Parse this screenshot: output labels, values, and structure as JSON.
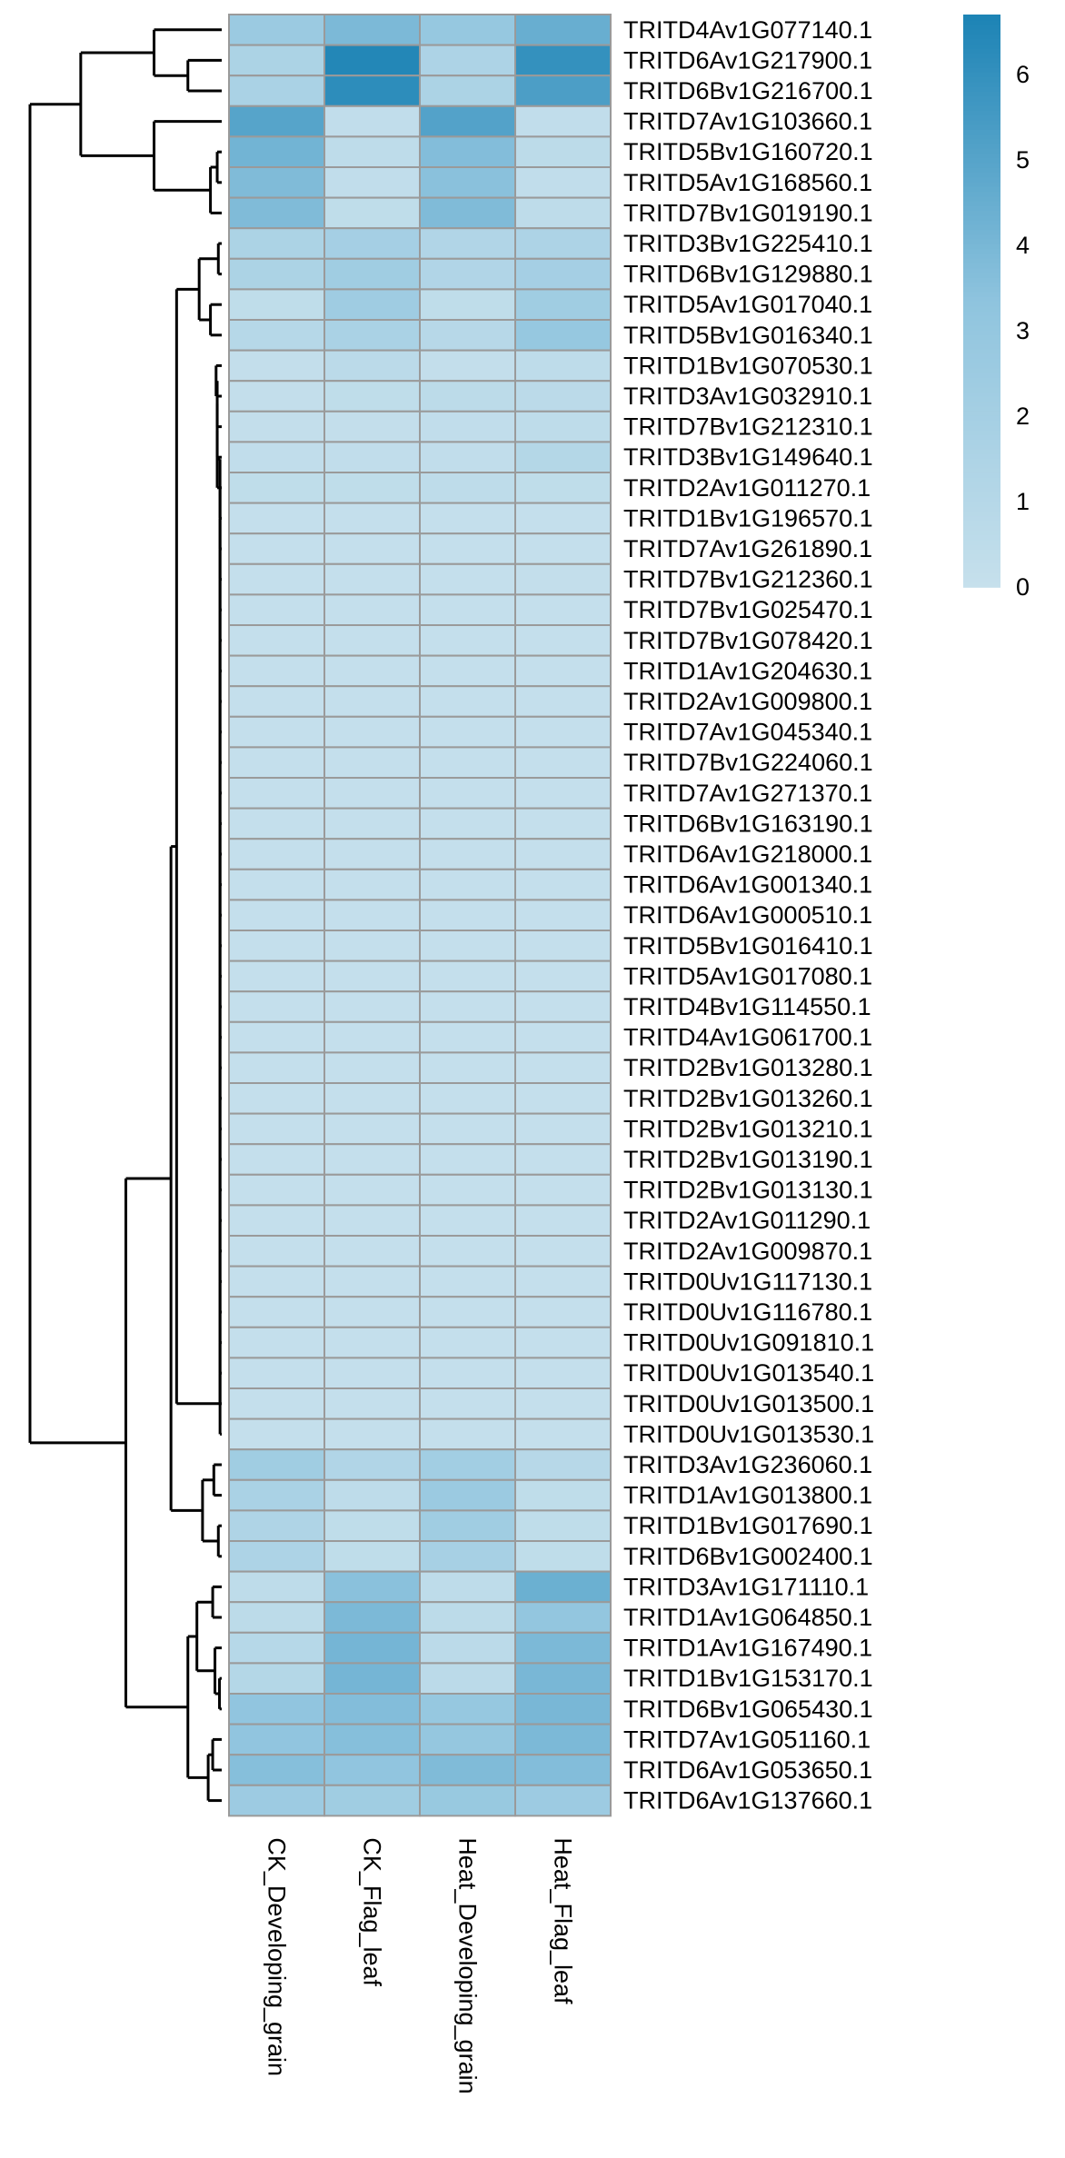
{
  "chart_data": {
    "type": "heatmap",
    "title": "",
    "xlabel": "",
    "ylabel": "",
    "columns": [
      "CK_Developing_grain",
      "CK_Flag_leaf",
      "Heat_Developing_grain",
      "Heat_Flag_leaf"
    ],
    "rows": [
      "TRITD4Av1G077140.1",
      "TRITD6Av1G217900.1",
      "TRITD6Bv1G216700.1",
      "TRITD7Av1G103660.1",
      "TRITD5Bv1G160720.1",
      "TRITD5Av1G168560.1",
      "TRITD7Bv1G019190.1",
      "TRITD3Bv1G225410.1",
      "TRITD6Bv1G129880.1",
      "TRITD5Av1G017040.1",
      "TRITD5Bv1G016340.1",
      "TRITD1Bv1G070530.1",
      "TRITD3Av1G032910.1",
      "TRITD7Bv1G212310.1",
      "TRITD3Bv1G149640.1",
      "TRITD2Av1G011270.1",
      "TRITD1Bv1G196570.1",
      "TRITD7Av1G261890.1",
      "TRITD7Bv1G212360.1",
      "TRITD7Bv1G025470.1",
      "TRITD7Bv1G078420.1",
      "TRITD1Av1G204630.1",
      "TRITD2Av1G009800.1",
      "TRITD7Av1G045340.1",
      "TRITD7Bv1G224060.1",
      "TRITD7Av1G271370.1",
      "TRITD6Bv1G163190.1",
      "TRITD6Av1G218000.1",
      "TRITD6Av1G001340.1",
      "TRITD6Av1G000510.1",
      "TRITD5Bv1G016410.1",
      "TRITD5Av1G017080.1",
      "TRITD4Bv1G114550.1",
      "TRITD4Av1G061700.1",
      "TRITD2Bv1G013280.1",
      "TRITD2Bv1G013260.1",
      "TRITD2Bv1G013210.1",
      "TRITD2Bv1G013190.1",
      "TRITD2Bv1G013130.1",
      "TRITD2Av1G011290.1",
      "TRITD2Av1G009870.1",
      "TRITD0Uv1G117130.1",
      "TRITD0Uv1G116780.1",
      "TRITD0Uv1G091810.1",
      "TRITD0Uv1G013540.1",
      "TRITD0Uv1G013500.1",
      "TRITD0Uv1G013530.1",
      "TRITD3Av1G236060.1",
      "TRITD1Av1G013800.1",
      "TRITD1Bv1G017690.1",
      "TRITD6Bv1G002400.1",
      "TRITD3Av1G171110.1",
      "TRITD1Av1G064850.1",
      "TRITD1Av1G167490.1",
      "TRITD1Bv1G153170.1",
      "TRITD6Bv1G065430.1",
      "TRITD7Av1G051160.1",
      "TRITD6Av1G053650.1",
      "TRITD6Av1G137660.1"
    ],
    "values": [
      [
        2.6,
        3.9,
        2.9,
        4.5
      ],
      [
        1.6,
        6.5,
        1.5,
        6.0
      ],
      [
        1.7,
        6.2,
        1.6,
        5.3
      ],
      [
        5.0,
        0.3,
        5.1,
        0.3
      ],
      [
        4.2,
        0.5,
        3.7,
        0.6
      ],
      [
        3.8,
        0.3,
        3.5,
        0.3
      ],
      [
        3.8,
        0.4,
        3.8,
        0.5
      ],
      [
        1.6,
        2.0,
        1.3,
        1.5
      ],
      [
        1.6,
        2.3,
        1.3,
        2.0
      ],
      [
        0.4,
        2.4,
        0.4,
        2.3
      ],
      [
        1.0,
        1.7,
        0.9,
        2.9
      ],
      [
        0.2,
        0.7,
        0.2,
        0.5
      ],
      [
        0.2,
        0.4,
        0.6,
        0.7
      ],
      [
        0.2,
        0.2,
        0.3,
        0.5
      ],
      [
        0.3,
        0.3,
        0.3,
        1.1
      ],
      [
        0.4,
        0.4,
        0.5,
        0.4
      ],
      [
        0.1,
        0.1,
        0.1,
        0.1
      ],
      [
        0.1,
        0.1,
        0.1,
        0.1
      ],
      [
        0.1,
        0.1,
        0.1,
        0.2
      ],
      [
        0.1,
        0.1,
        0.1,
        0.1
      ],
      [
        0.1,
        0.1,
        0.1,
        0.1
      ],
      [
        0.1,
        0.1,
        0.1,
        0.1
      ],
      [
        0.1,
        0.1,
        0.1,
        0.1
      ],
      [
        0.1,
        0.1,
        0.1,
        0.1
      ],
      [
        0.1,
        0.1,
        0.1,
        0.1
      ],
      [
        0.1,
        0.1,
        0.1,
        0.1
      ],
      [
        0.1,
        0.1,
        0.1,
        0.1
      ],
      [
        0.1,
        0.1,
        0.1,
        0.1
      ],
      [
        0.1,
        0.1,
        0.1,
        0.1
      ],
      [
        0.1,
        0.1,
        0.1,
        0.1
      ],
      [
        0.1,
        0.1,
        0.1,
        0.1
      ],
      [
        0.1,
        0.1,
        0.1,
        0.1
      ],
      [
        0.1,
        0.1,
        0.1,
        0.1
      ],
      [
        0.1,
        0.1,
        0.1,
        0.1
      ],
      [
        0.1,
        0.1,
        0.1,
        0.1
      ],
      [
        0.1,
        0.1,
        0.1,
        0.1
      ],
      [
        0.1,
        0.1,
        0.1,
        0.1
      ],
      [
        0.1,
        0.1,
        0.1,
        0.1
      ],
      [
        0.1,
        0.1,
        0.1,
        0.1
      ],
      [
        0.1,
        0.1,
        0.1,
        0.1
      ],
      [
        0.1,
        0.1,
        0.1,
        0.1
      ],
      [
        0.1,
        0.1,
        0.1,
        0.1
      ],
      [
        0.1,
        0.1,
        0.1,
        0.1
      ],
      [
        0.1,
        0.1,
        0.1,
        0.1
      ],
      [
        0.1,
        0.1,
        0.1,
        0.1
      ],
      [
        0.1,
        0.1,
        0.1,
        0.1
      ],
      [
        0.1,
        0.1,
        0.1,
        0.1
      ],
      [
        2.3,
        1.3,
        2.2,
        0.9
      ],
      [
        1.7,
        0.5,
        2.6,
        0.4
      ],
      [
        1.4,
        0.4,
        2.3,
        0.4
      ],
      [
        1.5,
        0.4,
        1.9,
        0.4
      ],
      [
        0.5,
        3.5,
        0.5,
        4.4
      ],
      [
        0.6,
        3.9,
        0.6,
        3.1
      ],
      [
        1.0,
        4.1,
        0.7,
        3.9
      ],
      [
        1.1,
        4.1,
        0.7,
        4.0
      ],
      [
        3.2,
        3.7,
        2.9,
        4.0
      ],
      [
        3.2,
        3.6,
        3.0,
        3.9
      ],
      [
        3.6,
        3.2,
        3.8,
        3.7
      ],
      [
        2.5,
        2.3,
        2.8,
        2.5
      ]
    ],
    "color_scale": {
      "min": 0,
      "max": 6.7,
      "low_color": "#c6e0ec",
      "mid_color": "#8fc4de",
      "high_color": "#1c83b5",
      "ticks": [
        0,
        1,
        2,
        3,
        4,
        5,
        6
      ]
    },
    "cell_border_color": "#9a9a9a",
    "row_dendrogram": "left",
    "legend_position": "top-right"
  }
}
